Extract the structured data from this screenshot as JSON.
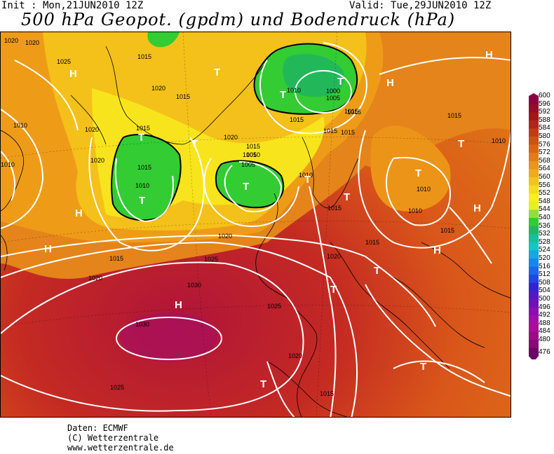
{
  "header": {
    "init": "Init : Mon,21JUN2010 12Z",
    "valid": "Valid: Tue,29JUN2010 12Z",
    "title": "500 hPa Geopot. (gpdm) und Bodendruck (hPa)"
  },
  "legend": {
    "values": [
      "600",
      "596",
      "592",
      "588",
      "584",
      "580",
      "576",
      "572",
      "568",
      "564",
      "560",
      "556",
      "552",
      "548",
      "544",
      "540",
      "536",
      "532",
      "528",
      "524",
      "520",
      "516",
      "512",
      "508",
      "504",
      "500",
      "496",
      "492",
      "488",
      "484",
      "480",
      "476"
    ],
    "colors": [
      "#8a0044",
      "#9a0a2a",
      "#a8141c",
      "#b52418",
      "#c33a16",
      "#cf5114",
      "#db6612",
      "#e27d14",
      "#e99516",
      "#efac18",
      "#f3c41a",
      "#f6dc1c",
      "#f9ef1e",
      "#e6f020",
      "#8fe03c",
      "#33cc33",
      "#1fb866",
      "#12c29a",
      "#10c6c6",
      "#12a8e0",
      "#1488f0",
      "#1a66f2",
      "#2244e8",
      "#3322d8",
      "#5518c8",
      "#7012b8",
      "#8a10b0",
      "#a010a8",
      "#a80e98",
      "#9a0c88",
      "#860a78",
      "#6a0868"
    ]
  },
  "map": {
    "highs": [
      "H",
      "H",
      "H",
      "H",
      "H",
      "H",
      "H",
      "H"
    ],
    "lows": [
      "T",
      "T",
      "T",
      "T",
      "T",
      "T",
      "T",
      "T",
      "T",
      "T",
      "T",
      "T",
      "T",
      "T"
    ],
    "isobar_labels": [
      "1020",
      "1025",
      "1015",
      "1020",
      "1010",
      "1020",
      "1020",
      "1015",
      "1015",
      "1010",
      "1020",
      "1015",
      "1010",
      "1000",
      "1005",
      "1015",
      "1015",
      "1010",
      "1005",
      "1010",
      "1015",
      "1020",
      "1025",
      "1030",
      "1030",
      "1025",
      "1020",
      "1015",
      "1025",
      "1015",
      "1015",
      "1010",
      "1010",
      "1010",
      "1015",
      "1015",
      "1020",
      "1015",
      "1015",
      "1015",
      "1010",
      "1005",
      "1020",
      "1020",
      "1015"
    ]
  },
  "footer": {
    "line1": "Daten: ECMWF",
    "line2": "(C) Wetterzentrale",
    "line3": "www.wetterzentrale.de"
  }
}
